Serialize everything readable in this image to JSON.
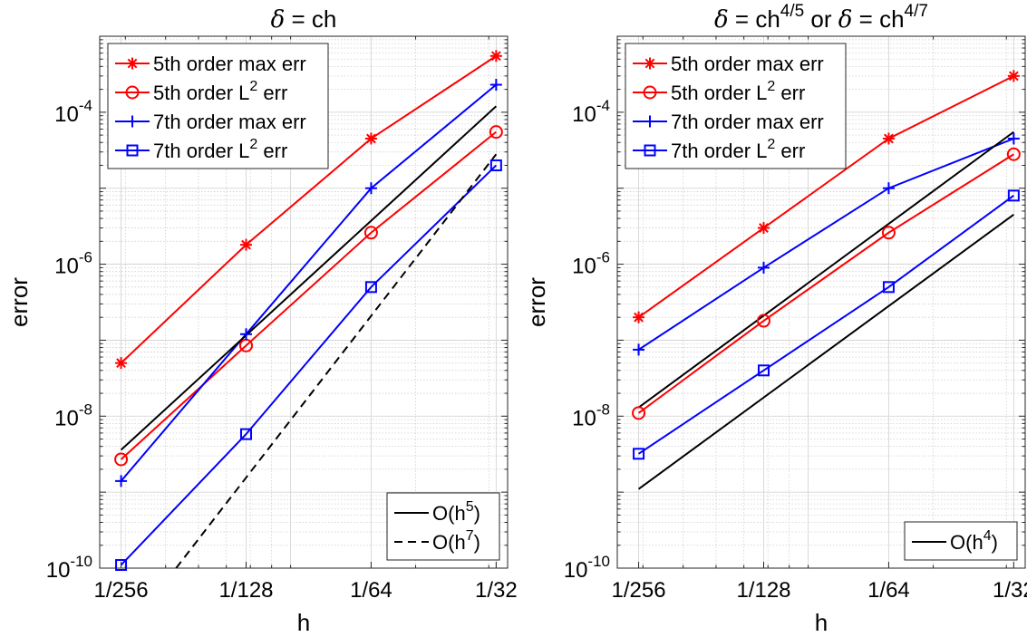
{
  "chart_data": [
    {
      "type": "line",
      "title_parts": [
        {
          "text": "δ",
          "style": "italic"
        },
        {
          "text": " = ch"
        }
      ],
      "xlabel": "h",
      "ylabel": "error",
      "xscale": "log",
      "yscale": "log",
      "xlim": [
        0.00347,
        0.0333
      ],
      "ylim": [
        1e-10,
        0.001
      ],
      "x_ticks": [
        {
          "value": 0.00390625,
          "label": "1/256"
        },
        {
          "value": 0.0078125,
          "label": "1/128"
        },
        {
          "value": 0.015625,
          "label": "1/64"
        },
        {
          "value": 0.03125,
          "label": "1/32"
        }
      ],
      "y_ticks": [
        {
          "value": 1e-10,
          "base": "10",
          "exp": "-10"
        },
        {
          "value": 1e-08,
          "base": "10",
          "exp": "-8"
        },
        {
          "value": 1e-06,
          "base": "10",
          "exp": "-6"
        },
        {
          "value": 0.0001,
          "base": "10",
          "exp": "-4"
        }
      ],
      "grid": true,
      "series": [
        {
          "name_main": "5th order max err",
          "name_sup": "",
          "name_after": "",
          "color": "#ff0000",
          "marker": "asterisk",
          "dash": false,
          "x": [
            0.00390625,
            0.0078125,
            0.015625,
            0.03125
          ],
          "y": [
            5e-08,
            1.8e-06,
            4.5e-05,
            0.00055
          ]
        },
        {
          "name_main": "5th order L",
          "name_sup": "2",
          "name_after": " err",
          "color": "#ff0000",
          "marker": "circle",
          "dash": false,
          "x": [
            0.00390625,
            0.0078125,
            0.015625,
            0.03125
          ],
          "y": [
            2.7e-09,
            8.5e-08,
            2.6e-06,
            5.5e-05
          ]
        },
        {
          "name_main": "7th order max err",
          "name_sup": "",
          "name_after": "",
          "color": "#0000ff",
          "marker": "plus",
          "dash": false,
          "x": [
            0.00390625,
            0.0078125,
            0.015625,
            0.03125
          ],
          "y": [
            1.4e-09,
            1.2e-07,
            1e-05,
            0.00023
          ]
        },
        {
          "name_main": "7th order L",
          "name_sup": "2",
          "name_after": " err",
          "color": "#0000ff",
          "marker": "square",
          "dash": false,
          "x": [
            0.00390625,
            0.0078125,
            0.015625,
            0.03125
          ],
          "y": [
            1.1e-10,
            5.8e-09,
            5e-07,
            2e-05
          ]
        },
        {
          "name_main": "O(h",
          "name_sup": "5",
          "name_after": ")",
          "color": "#000000",
          "marker": "none",
          "dash": false,
          "x": [
            0.00390625,
            0.03125
          ],
          "y": [
            3.6e-09,
            0.00012
          ]
        },
        {
          "name_main": "O(h",
          "name_sup": "7",
          "name_after": ")",
          "color": "#000000",
          "marker": "none",
          "dash": true,
          "x": [
            0.0053,
            0.03125
          ],
          "y": [
            1e-10,
            2.8e-05
          ]
        }
      ],
      "legends": [
        {
          "position": "top-left",
          "series": [
            0,
            1,
            2,
            3
          ]
        },
        {
          "position": "bottom-right",
          "series": [
            4,
            5
          ]
        }
      ]
    },
    {
      "type": "line",
      "title_parts": [
        {
          "text": "δ",
          "style": "italic"
        },
        {
          "text": " = ch"
        },
        {
          "text": "4/5",
          "style": "sup"
        },
        {
          "text": " or "
        },
        {
          "text": "δ",
          "style": "italic"
        },
        {
          "text": " = ch"
        },
        {
          "text": "4/7",
          "style": "sup"
        }
      ],
      "xlabel": "h",
      "ylabel": "error",
      "xscale": "log",
      "yscale": "log",
      "xlim": [
        0.00347,
        0.0333
      ],
      "ylim": [
        1e-10,
        0.001
      ],
      "x_ticks": [
        {
          "value": 0.00390625,
          "label": "1/256"
        },
        {
          "value": 0.0078125,
          "label": "1/128"
        },
        {
          "value": 0.015625,
          "label": "1/64"
        },
        {
          "value": 0.03125,
          "label": "1/32"
        }
      ],
      "y_ticks": [
        {
          "value": 1e-10,
          "base": "10",
          "exp": "-10"
        },
        {
          "value": 1e-08,
          "base": "10",
          "exp": "-8"
        },
        {
          "value": 1e-06,
          "base": "10",
          "exp": "-6"
        },
        {
          "value": 0.0001,
          "base": "10",
          "exp": "-4"
        }
      ],
      "grid": true,
      "series": [
        {
          "name_main": "5th order max err",
          "name_sup": "",
          "name_after": "",
          "color": "#ff0000",
          "marker": "asterisk",
          "dash": false,
          "x": [
            0.00390625,
            0.0078125,
            0.015625,
            0.03125
          ],
          "y": [
            2e-07,
            3e-06,
            4.5e-05,
            0.0003
          ]
        },
        {
          "name_main": "5th order L",
          "name_sup": "2",
          "name_after": " err",
          "color": "#ff0000",
          "marker": "circle",
          "dash": false,
          "x": [
            0.00390625,
            0.0078125,
            0.015625,
            0.03125
          ],
          "y": [
            1.1e-08,
            1.8e-07,
            2.6e-06,
            2.8e-05
          ]
        },
        {
          "name_main": "7th order max err",
          "name_sup": "",
          "name_after": "",
          "color": "#0000ff",
          "marker": "plus",
          "dash": false,
          "x": [
            0.00390625,
            0.0078125,
            0.015625,
            0.03125
          ],
          "y": [
            7.5e-08,
            9e-07,
            1e-05,
            4.5e-05
          ]
        },
        {
          "name_main": "7th order L",
          "name_sup": "2",
          "name_after": " err",
          "color": "#0000ff",
          "marker": "square",
          "dash": false,
          "x": [
            0.00390625,
            0.0078125,
            0.015625,
            0.03125
          ],
          "y": [
            3.2e-09,
            4e-08,
            5e-07,
            8e-06
          ]
        },
        {
          "name_main": "O(h",
          "name_sup": "4",
          "name_after": ")",
          "color": "#000000",
          "marker": "none",
          "dash": false,
          "x": [
            0.00390625,
            0.03125
          ],
          "y": [
            1.3e-08,
            5.5e-05
          ]
        },
        {
          "name_main": "",
          "name_sup": "",
          "name_after": "",
          "color": "#000000",
          "marker": "none",
          "dash": false,
          "x": [
            0.00390625,
            0.03125
          ],
          "y": [
            1.1e-09,
            4.5e-06
          ]
        }
      ],
      "legends": [
        {
          "position": "top-left",
          "series": [
            0,
            1,
            2,
            3
          ]
        },
        {
          "position": "bottom-right",
          "series": [
            4
          ]
        }
      ]
    }
  ]
}
